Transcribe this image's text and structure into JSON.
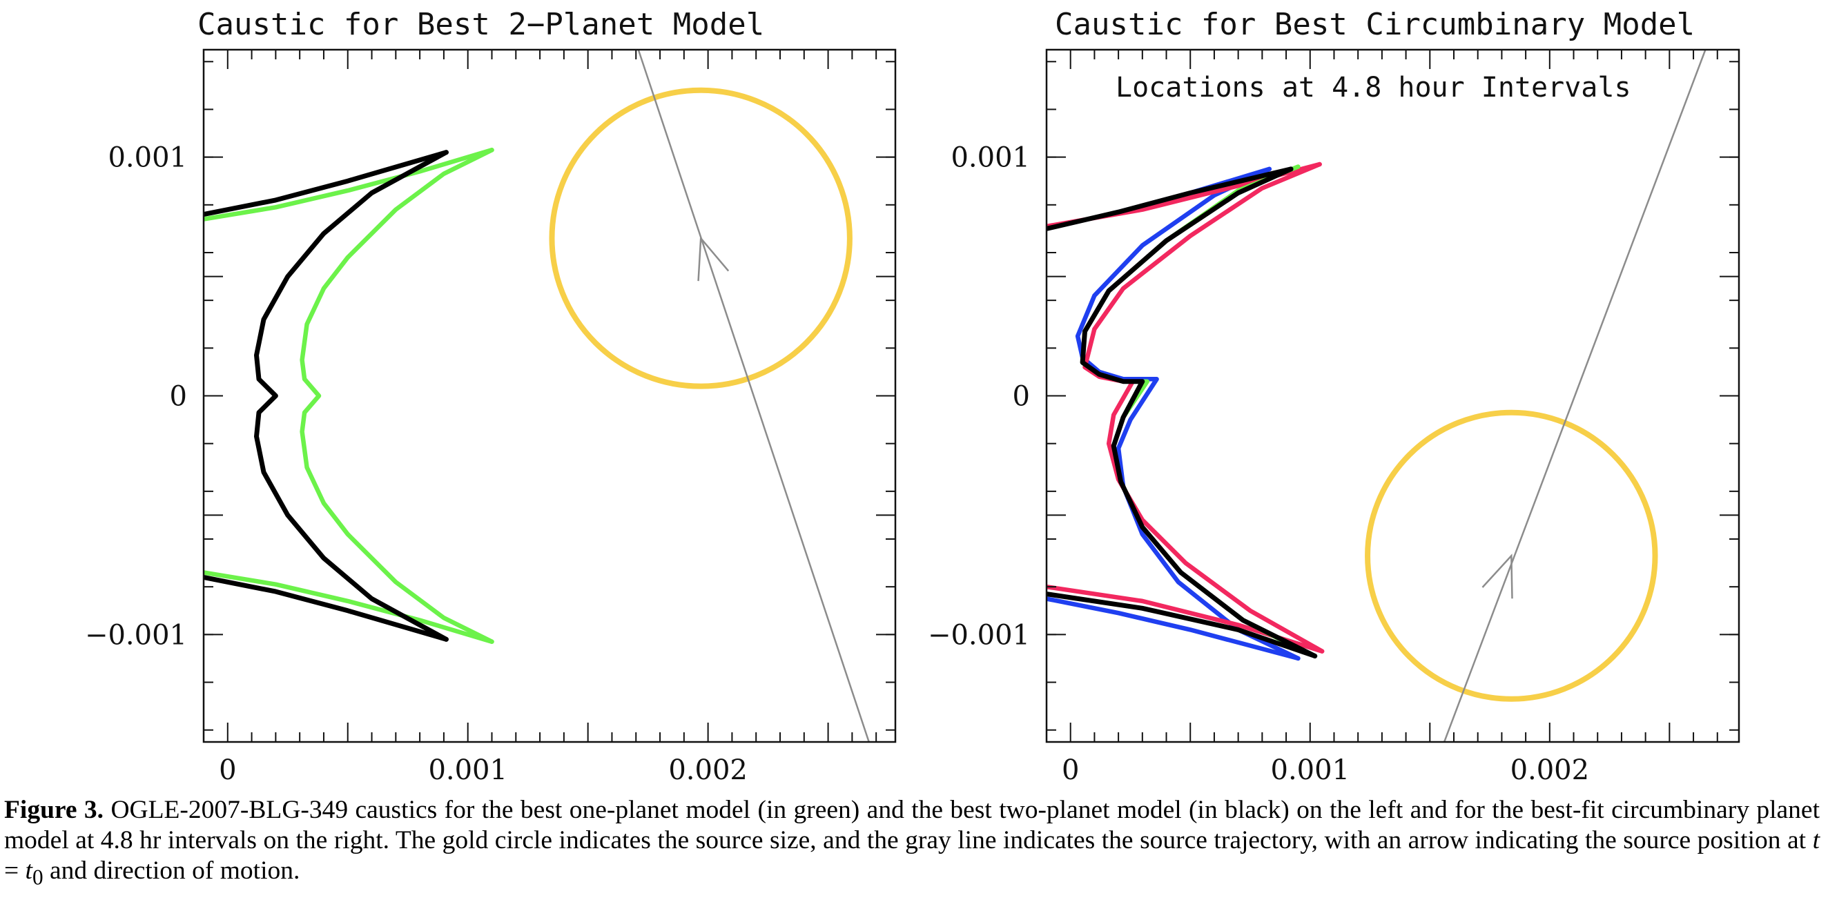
{
  "figure": {
    "colors": {
      "one_planet": "#6cf24a",
      "two_planet": "#000000",
      "source_circle": "#f7cf48",
      "trajectory": "#8c8c8c",
      "circumbinary_series": [
        "#1f3ff0",
        "#6cf24a",
        "#f2285f",
        "#000000"
      ]
    },
    "panels": [
      {
        "id": "left",
        "title": "Caustic for Best 2−Planet Model",
        "annotation": "",
        "x_tick_labels": [
          {
            "value": 0,
            "label": "0"
          },
          {
            "value": 0.001,
            "label": "0.001"
          },
          {
            "value": 0.002,
            "label": "0.002"
          }
        ],
        "y_tick_labels": [
          {
            "value": 0.001,
            "label": "0.001"
          },
          {
            "value": 0,
            "label": "0"
          },
          {
            "value": -0.001,
            "label": "−0.001"
          }
        ]
      },
      {
        "id": "right",
        "title": "Caustic for Best Circumbinary Model",
        "annotation": "Locations at 4.8 hour Intervals",
        "x_tick_labels": [
          {
            "value": 0,
            "label": "0"
          },
          {
            "value": 0.001,
            "label": "0.001"
          },
          {
            "value": 0.002,
            "label": "0.002"
          }
        ],
        "y_tick_labels": [
          {
            "value": 0.001,
            "label": "0.001"
          },
          {
            "value": 0,
            "label": "0"
          },
          {
            "value": -0.001,
            "label": "−0.001"
          }
        ]
      }
    ]
  },
  "chart_data": [
    {
      "type": "line",
      "title": "Caustic for Best 2−Planet Model",
      "xlabel": "",
      "ylabel": "",
      "xlim": [
        -0.0001,
        0.00278
      ],
      "ylim": [
        -0.00145,
        0.00145
      ],
      "grid": false,
      "series": [
        {
          "color": "#6cf24a",
          "x": [
            0.0011,
            0.0009,
            0.0007,
            0.0005,
            0.0004,
            0.00033,
            0.00031,
            0.00032,
            0.00038,
            0.00032,
            0.00031,
            0.00033,
            0.0004,
            0.0005,
            0.0007,
            0.0009,
            0.0011
          ],
          "y": [
            0.00103,
            0.00093,
            0.00078,
            0.00058,
            0.00045,
            0.0003,
            0.00015,
            7e-05,
            0.0,
            -7e-05,
            -0.00015,
            -0.0003,
            -0.00045,
            -0.00058,
            -0.00078,
            -0.00093,
            -0.00103
          ]
        },
        {
          "color": "#6cf24a",
          "x": [
            -0.0001,
            0.0002,
            0.0005,
            0.0008,
            0.0011
          ],
          "y": [
            0.00074,
            0.00079,
            0.00086,
            0.00094,
            0.00103
          ]
        },
        {
          "color": "#6cf24a",
          "x": [
            -0.0001,
            0.0002,
            0.0005,
            0.0008,
            0.0011
          ],
          "y": [
            -0.00074,
            -0.00079,
            -0.00086,
            -0.00094,
            -0.00103
          ]
        },
        {
          "color": "#000000",
          "x": [
            0.00091,
            0.0008,
            0.0006,
            0.0004,
            0.00025,
            0.00015,
            0.00012,
            0.00013,
            0.0002,
            0.00013,
            0.00012,
            0.00015,
            0.00025,
            0.0004,
            0.0006,
            0.0008,
            0.00091
          ],
          "y": [
            0.00102,
            0.00096,
            0.00085,
            0.00068,
            0.0005,
            0.00032,
            0.00017,
            7e-05,
            0.0,
            -7e-05,
            -0.00017,
            -0.00032,
            -0.0005,
            -0.00068,
            -0.00085,
            -0.00096,
            -0.00102
          ]
        },
        {
          "color": "#000000",
          "x": [
            -0.0001,
            0.0002,
            0.0005,
            0.00091
          ],
          "y": [
            0.00076,
            0.00082,
            0.0009,
            0.00102
          ]
        },
        {
          "color": "#000000",
          "x": [
            -0.0001,
            0.0002,
            0.0005,
            0.00091
          ],
          "y": [
            -0.00076,
            -0.00082,
            -0.0009,
            -0.00102
          ]
        }
      ],
      "source_circle": {
        "center": [
          0.00197,
          0.00066
        ],
        "radius": 0.00062,
        "color": "#f7cf48"
      },
      "trajectory": {
        "from": [
          0.00171,
          0.00145
        ],
        "to": [
          0.00267,
          -0.00145
        ],
        "arrow_at": [
          0.00197,
          0.00066
        ],
        "direction": "up-left",
        "color": "#8c8c8c"
      }
    },
    {
      "type": "line",
      "title": "Caustic for Best Circumbinary Model",
      "xlabel": "",
      "ylabel": "",
      "xlim": [
        -0.0001,
        0.00279
      ],
      "ylim": [
        -0.00145,
        0.00145
      ],
      "grid": false,
      "series": [
        {
          "color": "#1f3ff0",
          "x": [
            0.00083,
            0.0006,
            0.0003,
            0.0001,
            3e-05,
            5e-05,
            0.00012,
            0.00022,
            0.00036,
            0.00025,
            0.0002,
            0.00022,
            0.0003,
            0.00045,
            0.0007,
            0.00095
          ],
          "y": [
            0.00095,
            0.00084,
            0.00063,
            0.00042,
            0.00025,
            0.00016,
            0.0001,
            7e-05,
            7e-05,
            -0.0001,
            -0.00022,
            -0.00038,
            -0.00058,
            -0.00078,
            -0.00098,
            -0.0011
          ],
          "name": ""
        },
        {
          "color": "#1f3ff0",
          "x": [
            -0.0001,
            0.0002,
            0.0005,
            0.00083
          ],
          "y": [
            0.0007,
            0.00077,
            0.00085,
            0.00095
          ]
        },
        {
          "color": "#1f3ff0",
          "x": [
            -0.0001,
            0.0002,
            0.0005,
            0.00095
          ],
          "y": [
            -0.00085,
            -0.00091,
            -0.00098,
            -0.0011
          ]
        },
        {
          "color": "#f2285f",
          "x": [
            0.00104,
            0.0008,
            0.0005,
            0.00022,
            0.0001,
            6e-05,
            0.00012,
            0.00022,
            0.00026,
            0.00018,
            0.00016,
            0.0002,
            0.0003,
            0.00048,
            0.00075,
            0.00105
          ],
          "y": [
            0.00097,
            0.00087,
            0.00067,
            0.00045,
            0.00028,
            0.00012,
            8e-05,
            6e-05,
            6e-05,
            -8e-05,
            -0.0002,
            -0.00035,
            -0.00052,
            -0.0007,
            -0.0009,
            -0.00107
          ]
        },
        {
          "color": "#f2285f",
          "x": [
            -0.0001,
            0.0003,
            0.0007,
            0.00104
          ],
          "y": [
            0.00071,
            0.00078,
            0.00088,
            0.00097
          ]
        },
        {
          "color": "#f2285f",
          "x": [
            -0.0001,
            0.0003,
            0.0007,
            0.00105
          ],
          "y": [
            -0.0008,
            -0.00086,
            -0.00096,
            -0.00107
          ]
        },
        {
          "color": "#6cf24a",
          "x": [
            0.00095,
            0.0007,
            0.0004,
            0.00016,
            6e-05,
            5e-05,
            0.00012,
            0.00022,
            0.00032,
            0.00022,
            0.00018,
            0.00021,
            0.0003,
            0.00046,
            0.00072,
            0.00099
          ],
          "y": [
            0.00096,
            0.00086,
            0.00065,
            0.00044,
            0.00027,
            0.00014,
            9e-05,
            6e-05,
            6e-05,
            -9e-05,
            -0.00021,
            -0.00036,
            -0.00055,
            -0.00074,
            -0.00094,
            -0.00108
          ]
        },
        {
          "color": "#000000",
          "x": [
            0.00092,
            0.0007,
            0.0004,
            0.00016,
            6e-05,
            5e-05,
            0.00012,
            0.00022,
            0.0003,
            0.00022,
            0.00018,
            0.00021,
            0.0003,
            0.00046,
            0.00072,
            0.00102
          ],
          "y": [
            0.00095,
            0.00085,
            0.00065,
            0.00044,
            0.00027,
            0.00014,
            9e-05,
            6e-05,
            6e-05,
            -9e-05,
            -0.00021,
            -0.00036,
            -0.00055,
            -0.00074,
            -0.00094,
            -0.00109
          ]
        },
        {
          "color": "#000000",
          "x": [
            -0.0001,
            0.0002,
            0.0005,
            0.00092
          ],
          "y": [
            0.0007,
            0.00077,
            0.00085,
            0.00095
          ]
        },
        {
          "color": "#000000",
          "x": [
            -0.0001,
            0.0003,
            0.0007,
            0.00102
          ],
          "y": [
            -0.00083,
            -0.00089,
            -0.00098,
            -0.00109
          ]
        }
      ],
      "source_circle": {
        "center": [
          0.00184,
          -0.00067
        ],
        "radius": 0.0006,
        "color": "#f7cf48"
      },
      "trajectory": {
        "from": [
          0.00156,
          -0.00145
        ],
        "to": [
          0.00265,
          0.00145
        ],
        "arrow_at": [
          0.00184,
          -0.00067
        ],
        "direction": "down-left",
        "color": "#8c8c8c"
      }
    }
  ],
  "caption": {
    "label": "Figure 3.",
    "text_before_math": " OGLE-2007-BLG-349 caustics for the best one-planet model (in green) and the best two-planet model (in black) on the left and for the best-fit circumbinary planet model at 4.8 hr intervals on the right. The gold circle indicates the source size, and the gray line indicates the source trajectory, with an arrow indicating the source position at ",
    "math_t": "t",
    "math_eq": " = ",
    "math_t0": "t",
    "math_sub": "0",
    "text_after_math": " and direction of motion."
  }
}
